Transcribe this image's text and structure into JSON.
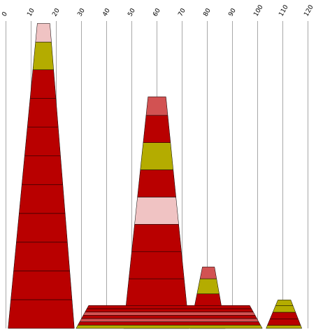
{
  "chart_data": {
    "type": "stacked-trapezoid",
    "x_axis": {
      "position": "top",
      "min": 0,
      "max": 120,
      "tick_step": 10,
      "tick_labels": [
        "0",
        "10",
        "20",
        "30",
        "40",
        "50",
        "60",
        "70",
        "80",
        "90",
        "100",
        "110",
        "120"
      ],
      "tick_label_rotation": -60,
      "grid": true
    },
    "colors": {
      "dark_red": "#b90000",
      "mid_red": "#d25252",
      "pink": "#f0c3c3",
      "olive": "#b4ac00",
      "grid": "#a8a8a8",
      "outline": "#000000"
    },
    "shapes": [
      {
        "name": "shape-1",
        "x_bottom": [
          1,
          27.3
        ],
        "x_top": [
          12.6,
          17.6
        ],
        "segments": [
          {
            "height": 11.4,
            "color": "dark_red"
          },
          {
            "height": 11.4,
            "color": "dark_red"
          },
          {
            "height": 11.4,
            "color": "dark_red"
          },
          {
            "height": 11.4,
            "color": "dark_red"
          },
          {
            "height": 11.4,
            "color": "dark_red"
          },
          {
            "height": 11.4,
            "color": "dark_red"
          },
          {
            "height": 11.4,
            "color": "dark_red"
          },
          {
            "height": 11.4,
            "color": "dark_red"
          },
          {
            "height": 11.4,
            "color": "dark_red"
          },
          {
            "height": 11.0,
            "color": "olive"
          },
          {
            "height": 7.4,
            "color": "pink"
          }
        ]
      },
      {
        "name": "shape-2",
        "x_bottom": [
          46.9,
          72.9
        ],
        "x_top": [
          56.6,
          63.7
        ],
        "segments": [
          {
            "height": 8.9,
            "color": "olive"
          },
          {
            "height": 10.8,
            "color": "dark_red"
          },
          {
            "height": 10.8,
            "color": "dark_red"
          },
          {
            "height": 10.8,
            "color": "dark_red"
          },
          {
            "height": 10.8,
            "color": "pink"
          },
          {
            "height": 10.8,
            "color": "dark_red"
          },
          {
            "height": 10.8,
            "color": "olive"
          },
          {
            "height": 10.8,
            "color": "dark_red"
          },
          {
            "height": 7.4,
            "color": "mid_red"
          }
        ]
      },
      {
        "name": "shape-3",
        "x_bottom": [
          73.3,
          87.3
        ],
        "x_top": [
          78.2,
          83.0
        ],
        "segments": [
          {
            "height": 1.7,
            "color": "dark_red"
          },
          {
            "height": 6.0,
            "color": "olive"
          },
          {
            "height": 6.0,
            "color": "dark_red"
          },
          {
            "height": 6.0,
            "color": "olive"
          },
          {
            "height": 4.7,
            "color": "mid_red"
          }
        ]
      },
      {
        "name": "shape-4",
        "x_bottom": [
          28.0,
          102.0
        ],
        "x_top": [
          33.0,
          97.0
        ],
        "segments": [
          {
            "height": 1.3,
            "color": "olive"
          },
          {
            "height": 1.3,
            "color": "dark_red"
          },
          {
            "height": 1.3,
            "color": "mid_red"
          },
          {
            "height": 1.3,
            "color": "dark_red"
          },
          {
            "height": 1.3,
            "color": "mid_red"
          },
          {
            "height": 1.3,
            "color": "dark_red"
          },
          {
            "height": 1.3,
            "color": "dark_red"
          }
        ]
      },
      {
        "name": "shape-5",
        "x_bottom": [
          103.5,
          117.7
        ],
        "x_top": [
          108.2,
          113.3
        ],
        "segments": [
          {
            "height": 1.2,
            "color": "olive"
          },
          {
            "height": 2.6,
            "color": "dark_red"
          },
          {
            "height": 2.6,
            "color": "dark_red"
          },
          {
            "height": 2.6,
            "color": "olive"
          },
          {
            "height": 2.3,
            "color": "olive"
          }
        ]
      }
    ]
  }
}
